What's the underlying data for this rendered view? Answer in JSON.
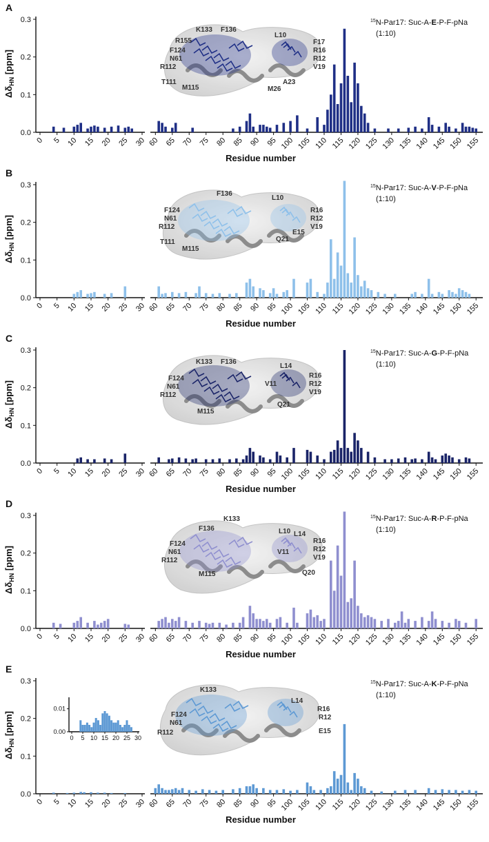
{
  "chart_data": [
    {
      "panel": "A",
      "type": "bar",
      "color": "#1f2f86",
      "legend": {
        "prefix": "15",
        "mid": "N-Par17: Suc-A-",
        "bold": "E",
        "suffix": "-P-F-pNa",
        "ratio": "(1:10)"
      },
      "xlabel": "Residue number",
      "ylabel": "Δδ",
      "ylabel_sub": "HN",
      "ylabel_unit": " [ppm]",
      "ylim": [
        0,
        0.3
      ],
      "yticks": [
        "0.0",
        "0.1",
        "0.2",
        "0.3"
      ],
      "residue_labels": [
        "K133",
        "F136",
        "L10",
        "R155",
        "F17",
        "F124",
        "R16",
        "N61",
        "R12",
        "R112",
        "V19",
        "T111",
        "M115",
        "A23",
        "M26"
      ],
      "x": [
        4,
        7,
        10,
        11,
        12,
        14,
        15,
        16,
        17,
        19,
        21,
        23,
        25,
        26,
        27,
        61,
        62,
        63,
        65,
        66,
        71,
        83,
        85,
        87,
        88,
        89,
        91,
        92,
        93,
        94,
        96,
        98,
        100,
        102,
        105,
        108,
        110,
        111,
        112,
        113,
        114,
        115,
        116,
        117,
        118,
        119,
        120,
        121,
        122,
        123,
        125,
        129,
        132,
        135,
        137,
        139,
        141,
        142,
        144,
        146,
        147,
        149,
        151,
        152,
        153,
        154,
        155
      ],
      "values": [
        0.015,
        0.012,
        0.015,
        0.02,
        0.025,
        0.01,
        0.015,
        0.018,
        0.015,
        0.012,
        0.015,
        0.018,
        0.012,
        0.015,
        0.01,
        0.03,
        0.025,
        0.015,
        0.012,
        0.025,
        0.012,
        0.01,
        0.015,
        0.03,
        0.05,
        0.015,
        0.02,
        0.02,
        0.015,
        0.012,
        0.02,
        0.025,
        0.03,
        0.045,
        0.01,
        0.04,
        0.02,
        0.06,
        0.1,
        0.18,
        0.075,
        0.13,
        0.275,
        0.15,
        0.08,
        0.185,
        0.13,
        0.07,
        0.05,
        0.025,
        0.01,
        0.01,
        0.01,
        0.012,
        0.015,
        0.01,
        0.04,
        0.02,
        0.015,
        0.025,
        0.015,
        0.01,
        0.025,
        0.015,
        0.015,
        0.012,
        0.01
      ]
    },
    {
      "panel": "B",
      "type": "bar",
      "color": "#8ec0ea",
      "legend": {
        "prefix": "15",
        "mid": "N-Par17: Suc-A-",
        "bold": "V",
        "suffix": "-P-F-pNa",
        "ratio": "(1:10)"
      },
      "xlabel": "Residue number",
      "ylabel": "Δδ",
      "ylabel_sub": "HN",
      "ylabel_unit": " [ppm]",
      "ylim": [
        0,
        0.3
      ],
      "yticks": [
        "0.0",
        "0.1",
        "0.2",
        "0.3"
      ],
      "residue_labels": [
        "F136",
        "L10",
        "F124",
        "R16",
        "N61",
        "R12",
        "R112",
        "E15",
        "V19",
        "T111",
        "Q21",
        "M115"
      ],
      "x": [
        10,
        11,
        12,
        14,
        15,
        16,
        19,
        21,
        25,
        61,
        62,
        63,
        65,
        67,
        69,
        72,
        73,
        75,
        77,
        79,
        82,
        84,
        87,
        88,
        89,
        91,
        92,
        94,
        95,
        96,
        98,
        99,
        101,
        105,
        106,
        108,
        110,
        111,
        112,
        113,
        114,
        115,
        116,
        117,
        118,
        119,
        120,
        121,
        122,
        123,
        124,
        126,
        128,
        131,
        136,
        137,
        139,
        141,
        142,
        144,
        145,
        147,
        148,
        149,
        150,
        151,
        152,
        153
      ],
      "values": [
        0.01,
        0.015,
        0.02,
        0.01,
        0.012,
        0.015,
        0.01,
        0.012,
        0.03,
        0.03,
        0.01,
        0.012,
        0.015,
        0.012,
        0.015,
        0.012,
        0.03,
        0.012,
        0.01,
        0.012,
        0.01,
        0.012,
        0.04,
        0.05,
        0.03,
        0.025,
        0.02,
        0.012,
        0.025,
        0.01,
        0.015,
        0.02,
        0.05,
        0.04,
        0.05,
        0.015,
        0.01,
        0.04,
        0.155,
        0.05,
        0.12,
        0.085,
        0.31,
        0.065,
        0.04,
        0.16,
        0.06,
        0.03,
        0.045,
        0.025,
        0.02,
        0.015,
        0.01,
        0.01,
        0.01,
        0.015,
        0.01,
        0.05,
        0.01,
        0.015,
        0.01,
        0.02,
        0.015,
        0.01,
        0.025,
        0.02,
        0.015,
        0.01
      ]
    },
    {
      "panel": "C",
      "type": "bar",
      "color": "#1a2468",
      "legend": {
        "prefix": "15",
        "mid": "N-Par17: Suc-A-",
        "bold": "G",
        "suffix": "-P-F-pNa",
        "ratio": "(1:10)"
      },
      "xlabel": "Residue number",
      "ylabel": "Δδ",
      "ylabel_sub": "HN",
      "ylabel_unit": " [ppm]",
      "ylim": [
        0,
        0.3
      ],
      "yticks": [
        "0.0",
        "0.1",
        "0.2",
        "0.3"
      ],
      "residue_labels": [
        "K133",
        "F136",
        "L14",
        "F124",
        "R16",
        "N61",
        "V11",
        "R12",
        "R112",
        "V19",
        "Q21",
        "M115"
      ],
      "x": [
        11,
        12,
        14,
        16,
        19,
        21,
        25,
        61,
        64,
        65,
        67,
        69,
        71,
        72,
        75,
        77,
        79,
        82,
        84,
        86,
        87,
        88,
        89,
        91,
        92,
        94,
        96,
        97,
        99,
        101,
        105,
        106,
        108,
        110,
        112,
        113,
        114,
        115,
        116,
        117,
        118,
        119,
        120,
        121,
        123,
        125,
        128,
        130,
        132,
        134,
        136,
        137,
        139,
        141,
        142,
        143,
        145,
        146,
        147,
        148,
        150,
        152,
        153
      ],
      "values": [
        0.012,
        0.015,
        0.01,
        0.01,
        0.012,
        0.01,
        0.025,
        0.015,
        0.01,
        0.012,
        0.015,
        0.012,
        0.01,
        0.012,
        0.01,
        0.01,
        0.012,
        0.01,
        0.012,
        0.01,
        0.02,
        0.04,
        0.03,
        0.02,
        0.015,
        0.01,
        0.03,
        0.02,
        0.015,
        0.04,
        0.035,
        0.03,
        0.02,
        0.01,
        0.03,
        0.035,
        0.06,
        0.04,
        0.3,
        0.04,
        0.03,
        0.08,
        0.06,
        0.04,
        0.03,
        0.015,
        0.01,
        0.01,
        0.012,
        0.015,
        0.01,
        0.012,
        0.01,
        0.03,
        0.015,
        0.01,
        0.02,
        0.025,
        0.02,
        0.015,
        0.01,
        0.015,
        0.012
      ]
    },
    {
      "panel": "D",
      "type": "bar",
      "color": "#8f8fcf",
      "legend": {
        "prefix": "15",
        "mid": "N-Par17: Suc-A-",
        "bold": "R",
        "suffix": "-P-F-pNa",
        "ratio": "(1:10)"
      },
      "xlabel": "Residue number",
      "ylabel": "Δδ",
      "ylabel_sub": "HN",
      "ylabel_unit": " [ppm]",
      "ylim": [
        0,
        0.3
      ],
      "yticks": [
        "0.0",
        "0.1",
        "0.2",
        "0.3"
      ],
      "residue_labels": [
        "F136",
        "K133",
        "L10",
        "L14",
        "F124",
        "R16",
        "N61",
        "V11",
        "R12",
        "R112",
        "V19",
        "M115",
        "Q20"
      ],
      "x": [
        4,
        6,
        10,
        11,
        12,
        14,
        16,
        17,
        18,
        19,
        20,
        25,
        26,
        61,
        62,
        63,
        64,
        65,
        66,
        67,
        69,
        71,
        73,
        75,
        76,
        77,
        79,
        81,
        83,
        85,
        86,
        88,
        89,
        90,
        91,
        92,
        93,
        94,
        96,
        97,
        99,
        101,
        102,
        105,
        106,
        107,
        108,
        109,
        110,
        112,
        113,
        114,
        115,
        116,
        117,
        118,
        119,
        120,
        121,
        122,
        123,
        124,
        125,
        127,
        129,
        131,
        132,
        133,
        134,
        135,
        137,
        139,
        141,
        142,
        143,
        145,
        147,
        149,
        150,
        152,
        155
      ],
      "values": [
        0.015,
        0.012,
        0.015,
        0.02,
        0.03,
        0.015,
        0.02,
        0.01,
        0.015,
        0.02,
        0.025,
        0.012,
        0.01,
        0.02,
        0.025,
        0.03,
        0.015,
        0.025,
        0.02,
        0.03,
        0.02,
        0.015,
        0.02,
        0.015,
        0.012,
        0.015,
        0.015,
        0.01,
        0.015,
        0.015,
        0.03,
        0.06,
        0.04,
        0.025,
        0.025,
        0.02,
        0.025,
        0.015,
        0.025,
        0.03,
        0.015,
        0.055,
        0.015,
        0.04,
        0.05,
        0.03,
        0.035,
        0.02,
        0.025,
        0.18,
        0.1,
        0.22,
        0.14,
        0.31,
        0.07,
        0.08,
        0.18,
        0.06,
        0.04,
        0.03,
        0.035,
        0.03,
        0.025,
        0.02,
        0.025,
        0.015,
        0.02,
        0.045,
        0.015,
        0.025,
        0.02,
        0.03,
        0.02,
        0.045,
        0.025,
        0.02,
        0.015,
        0.025,
        0.02,
        0.015,
        0.025
      ]
    },
    {
      "panel": "E",
      "type": "bar",
      "color": "#5d99d4",
      "legend": {
        "prefix": "15",
        "mid": "N-Par17: Suc-A-",
        "bold": "K",
        "suffix": "-P-F-pNa",
        "ratio": "(1:10)"
      },
      "xlabel": "Residue number",
      "ylabel": "Δδ",
      "ylabel_sub": "HN",
      "ylabel_unit": " [ppm]",
      "ylim": [
        0,
        0.3
      ],
      "yticks": [
        "0.0",
        "0.1",
        "0.2",
        "0.3"
      ],
      "residue_labels": [
        "K133",
        "L14",
        "F124",
        "R16",
        "N61",
        "R12",
        "R112",
        "E15"
      ],
      "x": [
        4,
        8,
        10,
        12,
        13,
        15,
        17,
        19,
        21,
        25,
        60,
        61,
        62,
        63,
        64,
        65,
        66,
        67,
        68,
        70,
        72,
        74,
        76,
        78,
        80,
        83,
        85,
        87,
        88,
        89,
        90,
        92,
        94,
        96,
        98,
        100,
        102,
        105,
        106,
        107,
        109,
        111,
        112,
        113,
        114,
        115,
        116,
        117,
        118,
        119,
        120,
        121,
        122,
        124,
        127,
        131,
        134,
        137,
        141,
        143,
        145,
        147,
        149,
        151,
        153,
        155
      ],
      "values": [
        0.003,
        0.002,
        0.003,
        0.005,
        0.004,
        0.004,
        0.003,
        0.003,
        0.002,
        0.002,
        0.015,
        0.025,
        0.015,
        0.01,
        0.01,
        0.012,
        0.015,
        0.01,
        0.015,
        0.01,
        0.008,
        0.012,
        0.01,
        0.008,
        0.01,
        0.012,
        0.015,
        0.02,
        0.02,
        0.025,
        0.015,
        0.015,
        0.01,
        0.01,
        0.012,
        0.008,
        0.01,
        0.03,
        0.02,
        0.01,
        0.01,
        0.015,
        0.02,
        0.06,
        0.04,
        0.05,
        0.185,
        0.03,
        0.01,
        0.055,
        0.04,
        0.02,
        0.015,
        0.008,
        0.006,
        0.008,
        0.01,
        0.01,
        0.015,
        0.01,
        0.012,
        0.01,
        0.01,
        0.008,
        0.01,
        0.008
      ],
      "inset": {
        "ylim": [
          0,
          0.015
        ],
        "yticks": [
          "0.00",
          "0.01"
        ],
        "xticks": [
          "0",
          "5",
          "10",
          "15",
          "20",
          "25",
          "30"
        ],
        "x": [
          4,
          5,
          6,
          7,
          8,
          9,
          10,
          11,
          12,
          13,
          14,
          15,
          16,
          17,
          18,
          19,
          20,
          21,
          22,
          23,
          24,
          25,
          26,
          27
        ],
        "values": [
          0.005,
          0.003,
          0.003,
          0.004,
          0.003,
          0.002,
          0.004,
          0.006,
          0.005,
          0.003,
          0.008,
          0.009,
          0.008,
          0.007,
          0.005,
          0.004,
          0.004,
          0.005,
          0.003,
          0.002,
          0.003,
          0.005,
          0.003,
          0.002
        ]
      }
    }
  ],
  "x_tick_labels_left": [
    "0",
    "5",
    "10",
    "15",
    "20",
    "25",
    "30"
  ],
  "x_tick_labels_right": [
    "60",
    "65",
    "70",
    "75",
    "80",
    "85",
    "90",
    "95",
    "100",
    "105",
    "110",
    "115",
    "120",
    "125",
    "130",
    "135",
    "140",
    "145",
    "150",
    "155"
  ]
}
